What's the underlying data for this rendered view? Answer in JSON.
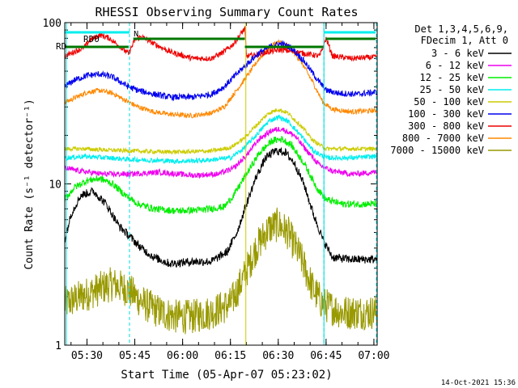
{
  "chart_data": {
    "type": "line",
    "title": "RHESSI Observing Summary Count Rates",
    "xlabel": "Start Time (05-Apr-07 05:23:02)",
    "ylabel": "Count Rate (s⁻¹ detector⁻¹)",
    "ylog": true,
    "ylim": [
      1,
      100
    ],
    "xlim_minutes": [
      0,
      98
    ],
    "x_ticks": [
      {
        "min": 6.97,
        "label": "05:30"
      },
      {
        "min": 21.97,
        "label": "05:45"
      },
      {
        "min": 36.97,
        "label": "06:00"
      },
      {
        "min": 51.97,
        "label": "06:15"
      },
      {
        "min": 66.97,
        "label": "06:30"
      },
      {
        "min": 81.97,
        "label": "06:45"
      },
      {
        "min": 96.97,
        "label": "07:00"
      }
    ],
    "y_ticks": [
      {
        "value": 1,
        "label": "1"
      },
      {
        "value": 10,
        "label": "10"
      },
      {
        "value": 100,
        "label": "100"
      }
    ],
    "legend": {
      "position": "right",
      "header": [
        "Det 1,3,4,5,6,9,",
        "FDecim 1, Att 0"
      ],
      "entries": [
        "3 - 6 keV",
        "6 - 12 keV",
        "12 - 25 keV",
        "25 - 50 keV",
        "50 - 100 keV",
        "100 - 300 keV",
        "300 - 800 keV",
        "800 - 7000 keV",
        "7000 - 15000 keV"
      ]
    },
    "annotations": {
      "rd0_label": "RD0",
      "rd_label": "RD",
      "n_label": "N",
      "footer_date": "14-Oct-2021 15:36"
    },
    "night_boundaries_minutes": [
      20.3,
      81.3
    ],
    "series": [
      {
        "name": "3 - 6 keV",
        "color": "#000000",
        "noise": 0.06,
        "points": [
          [
            0,
            4.5
          ],
          [
            2,
            6.5
          ],
          [
            5,
            8.5
          ],
          [
            9,
            9
          ],
          [
            13,
            7.5
          ],
          [
            17,
            5.5
          ],
          [
            20,
            4.8
          ],
          [
            24,
            4
          ],
          [
            28,
            3.5
          ],
          [
            33,
            3.2
          ],
          [
            40,
            3.3
          ],
          [
            46,
            3.3
          ],
          [
            51,
            3.8
          ],
          [
            54,
            5
          ],
          [
            57,
            7.5
          ],
          [
            60,
            11
          ],
          [
            63,
            14.5
          ],
          [
            66,
            16
          ],
          [
            69,
            15.8
          ],
          [
            72,
            13.5
          ],
          [
            75,
            10
          ],
          [
            78,
            6.5
          ],
          [
            81,
            4.5
          ],
          [
            84,
            3.5
          ],
          [
            90,
            3.4
          ],
          [
            97,
            3.4
          ]
        ]
      },
      {
        "name": "6 - 12 keV",
        "color": "#ee00ee",
        "noise": 0.04,
        "points": [
          [
            0,
            12.5
          ],
          [
            5,
            12
          ],
          [
            12,
            11.5
          ],
          [
            20,
            11.5
          ],
          [
            30,
            11.8
          ],
          [
            40,
            11.3
          ],
          [
            48,
            11.5
          ],
          [
            53,
            12.5
          ],
          [
            57,
            15
          ],
          [
            61,
            19
          ],
          [
            65,
            21.5
          ],
          [
            68,
            22
          ],
          [
            72,
            20
          ],
          [
            76,
            16
          ],
          [
            80,
            13
          ],
          [
            84,
            12
          ],
          [
            90,
            11.5
          ],
          [
            97,
            11.8
          ]
        ]
      },
      {
        "name": "12 - 25 keV",
        "color": "#00ee00",
        "noise": 0.05,
        "points": [
          [
            0,
            8
          ],
          [
            3,
            9.5
          ],
          [
            7,
            10.5
          ],
          [
            11,
            10.8
          ],
          [
            15,
            10
          ],
          [
            19,
            8.5
          ],
          [
            23,
            7.5
          ],
          [
            28,
            7
          ],
          [
            35,
            6.8
          ],
          [
            43,
            6.9
          ],
          [
            50,
            7.2
          ],
          [
            53,
            8.5
          ],
          [
            57,
            11.5
          ],
          [
            61,
            15.5
          ],
          [
            65,
            18.5
          ],
          [
            68,
            19
          ],
          [
            71,
            17.5
          ],
          [
            75,
            13.5
          ],
          [
            79,
            9.5
          ],
          [
            82,
            8
          ],
          [
            87,
            7.5
          ],
          [
            97,
            7.5
          ]
        ]
      },
      {
        "name": "25 - 50 keV",
        "color": "#00eeee",
        "noise": 0.035,
        "points": [
          [
            0,
            14.5
          ],
          [
            6,
            14.8
          ],
          [
            14,
            14.5
          ],
          [
            20,
            14.2
          ],
          [
            28,
            14
          ],
          [
            36,
            13.8
          ],
          [
            44,
            14
          ],
          [
            52,
            14.5
          ],
          [
            56,
            16.5
          ],
          [
            60,
            20
          ],
          [
            64,
            24.5
          ],
          [
            67,
            26
          ],
          [
            70,
            24.5
          ],
          [
            74,
            20
          ],
          [
            78,
            16
          ],
          [
            82,
            14.5
          ],
          [
            90,
            14.5
          ],
          [
            97,
            14.8
          ]
        ]
      },
      {
        "name": "50 - 100 keV",
        "color": "#cccc00",
        "noise": 0.03,
        "points": [
          [
            0,
            16.5
          ],
          [
            6,
            16.5
          ],
          [
            14,
            16.2
          ],
          [
            22,
            16
          ],
          [
            30,
            15.8
          ],
          [
            38,
            15.8
          ],
          [
            46,
            16
          ],
          [
            52,
            16.8
          ],
          [
            56,
            19
          ],
          [
            60,
            23
          ],
          [
            64,
            27.5
          ],
          [
            67,
            29
          ],
          [
            70,
            27.5
          ],
          [
            74,
            23
          ],
          [
            78,
            18.5
          ],
          [
            82,
            16.5
          ],
          [
            90,
            16.5
          ],
          [
            97,
            16.5
          ]
        ]
      },
      {
        "name": "100 - 300 keV",
        "color": "#0000ee",
        "noise": 0.045,
        "points": [
          [
            0,
            40
          ],
          [
            3,
            44
          ],
          [
            7,
            47
          ],
          [
            11,
            48
          ],
          [
            15,
            46
          ],
          [
            20,
            40
          ],
          [
            23,
            38
          ],
          [
            28,
            36
          ],
          [
            33,
            34.5
          ],
          [
            40,
            34.5
          ],
          [
            46,
            36
          ],
          [
            50,
            40
          ],
          [
            53,
            46
          ],
          [
            57,
            55
          ],
          [
            61,
            65
          ],
          [
            65,
            72
          ],
          [
            68,
            74
          ],
          [
            71,
            70
          ],
          [
            75,
            58
          ],
          [
            79,
            45
          ],
          [
            82,
            38
          ],
          [
            86,
            36.5
          ],
          [
            92,
            36
          ],
          [
            97,
            37
          ]
        ]
      },
      {
        "name": "300 - 800 keV",
        "color": "#ee0000",
        "noise": 0.04,
        "points": [
          [
            0,
            62
          ],
          [
            3,
            66
          ],
          [
            6,
            70
          ],
          [
            8,
            78
          ],
          [
            11,
            84
          ],
          [
            14,
            80
          ],
          [
            17,
            72
          ],
          [
            20,
            64
          ],
          [
            22,
            78
          ],
          [
            24,
            82
          ],
          [
            28,
            74
          ],
          [
            33,
            66
          ],
          [
            40,
            60
          ],
          [
            46,
            60
          ],
          [
            50,
            66
          ],
          [
            53,
            74
          ],
          [
            55,
            84
          ],
          [
            56.5,
            92
          ],
          [
            57,
            62
          ],
          [
            60,
            63
          ],
          [
            64,
            66
          ],
          [
            68,
            68
          ],
          [
            72,
            66
          ],
          [
            76,
            64
          ],
          [
            80,
            62
          ],
          [
            82,
            80
          ],
          [
            84,
            62
          ],
          [
            90,
            60
          ],
          [
            97,
            61
          ]
        ]
      },
      {
        "name": "800 - 7000 keV",
        "color": "#ff8800",
        "noise": 0.035,
        "points": [
          [
            0,
            32
          ],
          [
            3,
            34
          ],
          [
            7,
            37
          ],
          [
            11,
            38
          ],
          [
            15,
            36.5
          ],
          [
            19,
            33
          ],
          [
            23,
            30
          ],
          [
            28,
            28
          ],
          [
            33,
            27
          ],
          [
            40,
            26.5
          ],
          [
            46,
            27.5
          ],
          [
            50,
            30
          ],
          [
            53,
            36
          ],
          [
            57,
            46
          ],
          [
            61,
            60
          ],
          [
            65,
            72
          ],
          [
            67,
            76
          ],
          [
            70,
            72
          ],
          [
            74,
            58
          ],
          [
            78,
            42
          ],
          [
            81,
            32
          ],
          [
            84,
            29
          ],
          [
            90,
            28
          ],
          [
            97,
            28.5
          ]
        ]
      },
      {
        "name": "7000 - 15000 keV",
        "color": "#999900",
        "noise": 0.25,
        "points": [
          [
            0,
            1.8
          ],
          [
            5,
            2
          ],
          [
            10,
            2.2
          ],
          [
            15,
            2.4
          ],
          [
            20,
            2.2
          ],
          [
            25,
            1.8
          ],
          [
            30,
            1.6
          ],
          [
            35,
            1.5
          ],
          [
            40,
            1.5
          ],
          [
            46,
            1.6
          ],
          [
            52,
            1.8
          ],
          [
            56,
            2.6
          ],
          [
            60,
            4
          ],
          [
            64,
            5.3
          ],
          [
            67,
            5.6
          ],
          [
            70,
            5
          ],
          [
            74,
            3.5
          ],
          [
            78,
            2.2
          ],
          [
            81,
            1.8
          ],
          [
            87,
            1.6
          ],
          [
            97,
            1.6
          ]
        ]
      }
    ]
  }
}
